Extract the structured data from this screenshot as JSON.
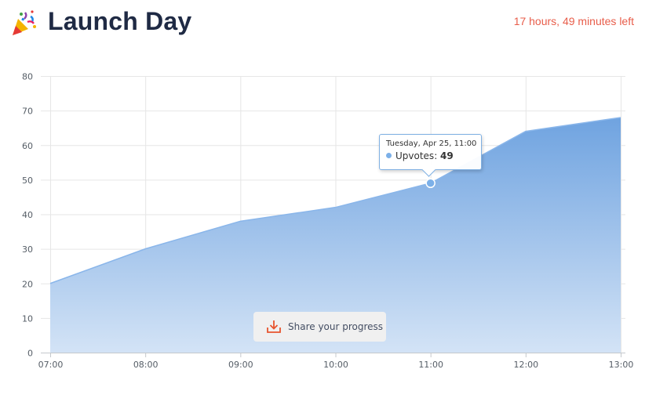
{
  "header": {
    "title": "Launch Day",
    "time_left": "17 hours, 49 minutes left",
    "icon": "party-popper-icon"
  },
  "tooltip": {
    "date": "Tuesday, Apr 25, 11:00",
    "series_label": "Upvotes",
    "value": "49"
  },
  "share": {
    "label": "Share your progress",
    "icon": "download-icon"
  },
  "colors": {
    "accent": "#e85d4a",
    "area_top": "#6fa3e0",
    "area_bottom": "#d3e3f6",
    "title": "#1f2a44"
  },
  "chart_data": {
    "type": "area",
    "title": "",
    "xlabel": "",
    "ylabel": "",
    "categories": [
      "07:00",
      "08:00",
      "09:00",
      "10:00",
      "11:00",
      "12:00",
      "13:00"
    ],
    "series": [
      {
        "name": "Upvotes",
        "values": [
          20,
          30,
          38,
          42,
          49,
          64,
          68
        ]
      }
    ],
    "yticks": [
      0,
      10,
      20,
      30,
      40,
      50,
      60,
      70,
      80
    ],
    "ylim": [
      0,
      80
    ],
    "grid": true,
    "legend": "none",
    "highlighted_category": "11:00"
  }
}
